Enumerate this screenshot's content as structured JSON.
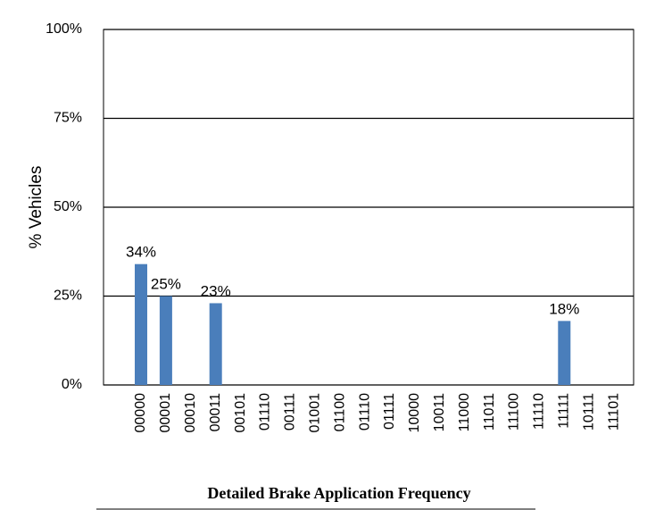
{
  "chart_data": {
    "type": "bar",
    "title": "Detailed Brake Application Frequency",
    "y_label": "% Vehicles",
    "categories": [
      "00000",
      "00001",
      "00010",
      "00011",
      "00101",
      "01110",
      "00111",
      "01001",
      "01100",
      "01110",
      "01111",
      "10000",
      "10011",
      "11000",
      "11011",
      "11100",
      "11110",
      "11111",
      "10111",
      "11101"
    ],
    "values": [
      34,
      25,
      0,
      23,
      0,
      0,
      0,
      0,
      0,
      0,
      0,
      0,
      0,
      0,
      0,
      0,
      0,
      18,
      0,
      0
    ],
    "value_labels": [
      "34%",
      "25%",
      null,
      "23%",
      null,
      null,
      null,
      null,
      null,
      null,
      null,
      null,
      null,
      null,
      null,
      null,
      null,
      "18%",
      null,
      null
    ],
    "color": "#4a7ebb",
    "ylim": [
      0,
      100
    ],
    "yticks": [
      {
        "value": 0,
        "label": "0%"
      },
      {
        "value": 25,
        "label": "25%"
      },
      {
        "value": 50,
        "label": "50%"
      },
      {
        "value": 75,
        "label": "75%"
      },
      {
        "value": 100,
        "label": "100%"
      }
    ],
    "grid": true
  }
}
